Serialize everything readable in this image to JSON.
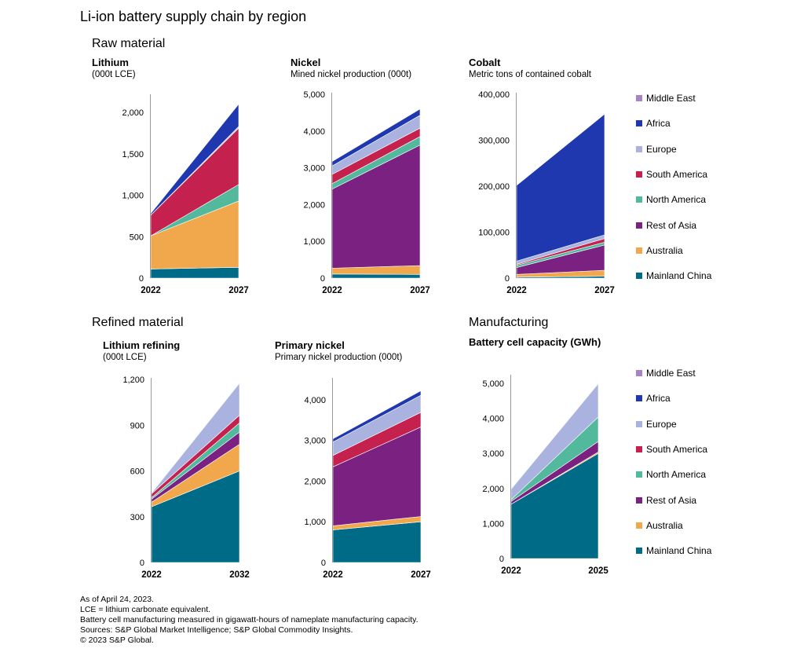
{
  "title": "Li-ion battery supply chain by region",
  "sections": {
    "raw": "Raw material",
    "refined": "Refined material",
    "manufacturing": "Manufacturing"
  },
  "colors": {
    "Mainland China": "#006b87",
    "Australia": "#f1a84c",
    "Rest of Asia": "#7a2182",
    "North America": "#52b99d",
    "South America": "#c4214e",
    "Europe": "#aab3df",
    "Africa": "#1f38b0",
    "Middle East": "#a884c4"
  },
  "legend": [
    "Middle East",
    "Africa",
    "Europe",
    "South America",
    "North America",
    "Rest of Asia",
    "Australia",
    "Mainland China"
  ],
  "chart_data": [
    {
      "id": "lithium",
      "type": "area",
      "title": "Lithium",
      "subtitle": "(000t LCE)",
      "categories": [
        "2022",
        "2027"
      ],
      "ylim": [
        0,
        2200
      ],
      "yticks": [
        "0",
        "500",
        "1,000",
        "1,500",
        "2,000"
      ],
      "ytick_values": [
        0,
        500,
        1000,
        1500,
        2000
      ],
      "series": [
        {
          "name": "Mainland China",
          "values": [
            110,
            130
          ]
        },
        {
          "name": "Australia",
          "values": [
            400,
            800
          ]
        },
        {
          "name": "North America",
          "values": [
            0,
            200
          ]
        },
        {
          "name": "South America",
          "values": [
            250,
            680
          ]
        },
        {
          "name": "Europe",
          "values": [
            0,
            20
          ]
        },
        {
          "name": "Africa",
          "values": [
            20,
            270
          ]
        }
      ]
    },
    {
      "id": "nickel",
      "type": "area",
      "title": "Nickel",
      "subtitle": "Mined nickel production (000t)",
      "categories": [
        "2022",
        "2027"
      ],
      "ylim": [
        0,
        5000
      ],
      "yticks": [
        "0",
        "1,000",
        "2,000",
        "3,000",
        "4,000",
        "5,000"
      ],
      "ytick_values": [
        0,
        1000,
        2000,
        3000,
        4000,
        5000
      ],
      "series": [
        {
          "name": "Mainland China",
          "values": [
            110,
            100
          ]
        },
        {
          "name": "Australia",
          "values": [
            160,
            240
          ]
        },
        {
          "name": "Rest of Asia",
          "values": [
            2150,
            3280
          ]
        },
        {
          "name": "North America",
          "values": [
            150,
            230
          ]
        },
        {
          "name": "South America",
          "values": [
            250,
            230
          ]
        },
        {
          "name": "Europe",
          "values": [
            230,
            350
          ]
        },
        {
          "name": "Africa",
          "values": [
            120,
            170
          ]
        }
      ]
    },
    {
      "id": "cobalt",
      "type": "area",
      "title": "Cobalt",
      "subtitle": "Metric tons of contained cobalt",
      "categories": [
        "2022",
        "2027"
      ],
      "ylim": [
        0,
        400000
      ],
      "yticks": [
        "0",
        "100,000",
        "200,000",
        "300,000",
        "400,000"
      ],
      "ytick_values": [
        0,
        100000,
        200000,
        300000,
        400000
      ],
      "series": [
        {
          "name": "Mainland China",
          "values": [
            2000,
            4000
          ]
        },
        {
          "name": "Australia",
          "values": [
            6000,
            13000
          ]
        },
        {
          "name": "Rest of Asia",
          "values": [
            15000,
            55000
          ]
        },
        {
          "name": "North America",
          "values": [
            5000,
            6000
          ]
        },
        {
          "name": "South America",
          "values": [
            2000,
            8000
          ]
        },
        {
          "name": "Europe",
          "values": [
            7000,
            8000
          ]
        },
        {
          "name": "Africa",
          "values": [
            165000,
            263000
          ]
        },
        {
          "name": "Middle East",
          "values": [
            0,
            1000
          ]
        }
      ]
    },
    {
      "id": "lithium-refining",
      "type": "area",
      "title": "Lithium refining",
      "subtitle": "(000t LCE)",
      "categories": [
        "2022",
        "2032"
      ],
      "ylim": [
        0,
        1200
      ],
      "yticks": [
        "0",
        "300",
        "600",
        "900",
        "1,200"
      ],
      "ytick_values": [
        0,
        300,
        600,
        900,
        1200
      ],
      "series": [
        {
          "name": "Mainland China",
          "values": [
            365,
            600
          ]
        },
        {
          "name": "Australia",
          "values": [
            30,
            175
          ]
        },
        {
          "name": "Rest of Asia",
          "values": [
            20,
            80
          ]
        },
        {
          "name": "North America",
          "values": [
            10,
            60
          ]
        },
        {
          "name": "South America",
          "values": [
            25,
            50
          ]
        },
        {
          "name": "Europe",
          "values": [
            5,
            210
          ]
        }
      ]
    },
    {
      "id": "primary-nickel",
      "type": "area",
      "title": "Primary nickel",
      "subtitle": "Primary nickel production (000t)",
      "categories": [
        "2022",
        "2027"
      ],
      "ylim": [
        0,
        4500
      ],
      "yticks": [
        "0",
        "1,000",
        "2,000",
        "3,000",
        "4,000"
      ],
      "ytick_values": [
        0,
        1000,
        2000,
        3000,
        4000
      ],
      "series": [
        {
          "name": "Mainland China",
          "values": [
            800,
            1000
          ]
        },
        {
          "name": "Australia",
          "values": [
            100,
            130
          ]
        },
        {
          "name": "Rest of Asia",
          "values": [
            1450,
            2200
          ]
        },
        {
          "name": "South America",
          "values": [
            280,
            360
          ]
        },
        {
          "name": "Europe",
          "values": [
            330,
            420
          ]
        },
        {
          "name": "Africa",
          "values": [
            80,
            110
          ]
        }
      ]
    },
    {
      "id": "battery-cell",
      "type": "area",
      "title": "Battery cell capacity (GWh)",
      "subtitle": "",
      "categories": [
        "2022",
        "2025"
      ],
      "ylim": [
        0,
        5200
      ],
      "yticks": [
        "0",
        "1,000",
        "2,000",
        "3,000",
        "4,000",
        "5,000"
      ],
      "ytick_values": [
        0,
        1000,
        2000,
        3000,
        4000,
        5000
      ],
      "series": [
        {
          "name": "Mainland China",
          "values": [
            1550,
            3000
          ]
        },
        {
          "name": "Australia",
          "values": [
            0,
            40
          ]
        },
        {
          "name": "Rest of Asia",
          "values": [
            80,
            300
          ]
        },
        {
          "name": "North America",
          "values": [
            50,
            700
          ]
        },
        {
          "name": "Europe",
          "values": [
            300,
            950
          ]
        }
      ]
    }
  ],
  "footnotes": [
    "As of April 24, 2023.",
    "LCE = lithium carbonate equivalent.",
    "Battery cell manufacturing measured in gigawatt-hours of nameplate manufacturing capacity.",
    "Sources: S&P Global Market Intelligence; S&P Global Commodity Insights.",
    "© 2023 S&P Global."
  ]
}
